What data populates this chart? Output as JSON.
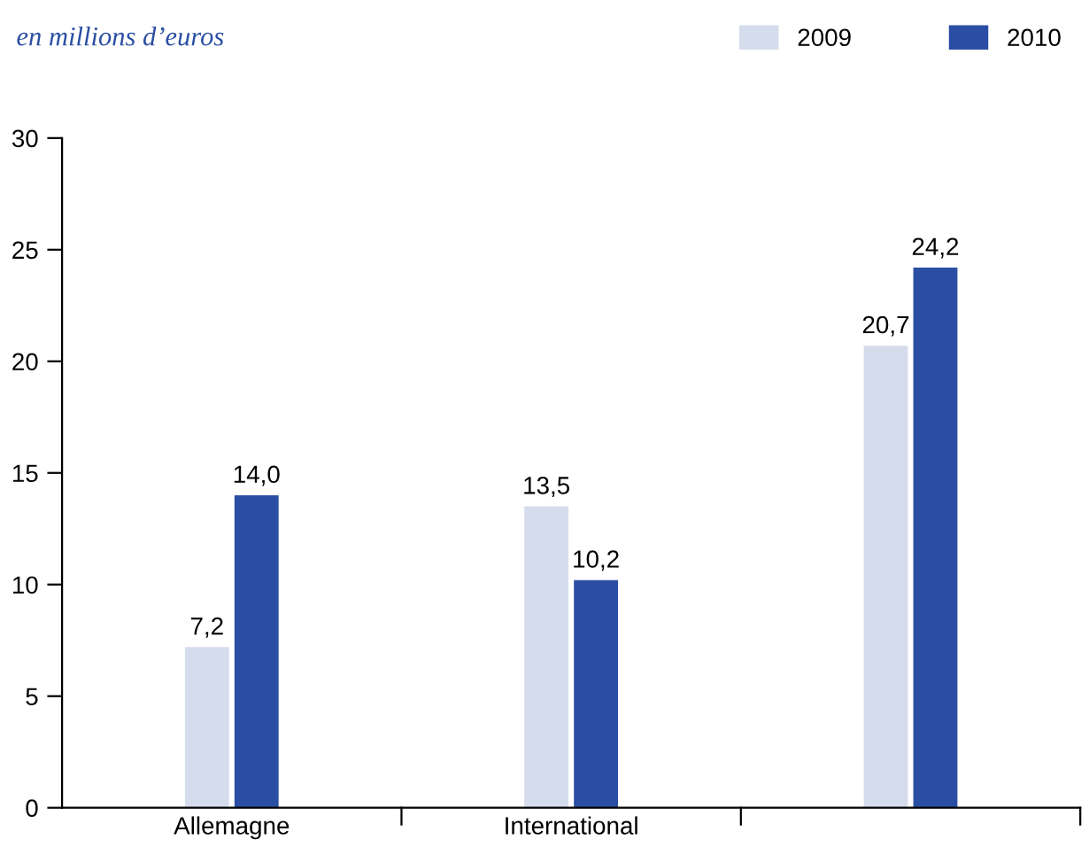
{
  "chart_data": {
    "type": "bar",
    "ylabel": "en millions d’euros",
    "categories": [
      "Allemagne",
      "International",
      null
    ],
    "series": [
      {
        "name": "2009",
        "color": "#d5dcec",
        "values": [
          7.2,
          13.5,
          20.7
        ],
        "value_labels": [
          "7,2",
          "13,5",
          "20,7"
        ]
      },
      {
        "name": "2010",
        "color": "#2a4ea3",
        "values": [
          14.0,
          10.2,
          24.2
        ],
        "value_labels": [
          "14,0",
          "10,2",
          "24,2"
        ]
      }
    ],
    "ylim": [
      0,
      30
    ],
    "yticks": [
      0,
      5,
      10,
      15,
      20,
      25,
      30
    ],
    "grid": false,
    "legend": "top right"
  }
}
